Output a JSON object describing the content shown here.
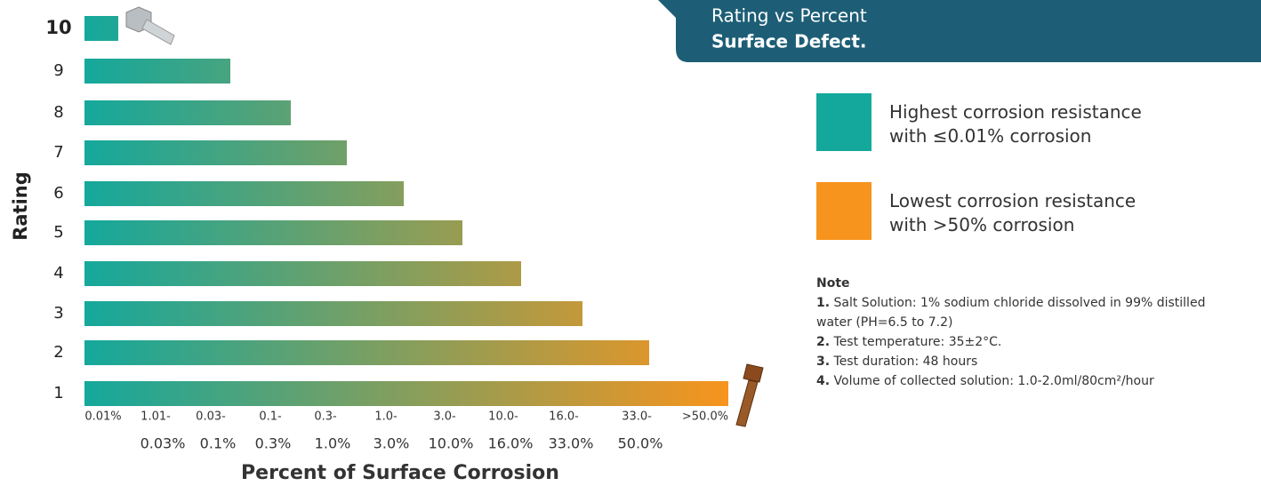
{
  "header": {
    "title": "Rating vs Percent",
    "subtitle": "Surface Defect."
  },
  "chart": {
    "y_axis_label": "Rating",
    "x_axis_label": "Percent of Surface Corrosion",
    "ratings": [
      "10",
      "9",
      "8",
      "7",
      "6",
      "5",
      "4",
      "3",
      "2",
      "1"
    ],
    "x_labels_upper": [
      "0.01%",
      "1.01-",
      "0.03-",
      "0.1-",
      "0.3-",
      "1.0-",
      "3.0-",
      "10.0-",
      "16.0-",
      "33.0-",
      ">50.0%"
    ],
    "x_labels_lower": [
      "0.03%",
      "0.1%",
      "0.3%",
      "1.0%",
      "3.0%",
      "10.0%",
      "16.0%",
      "33.0%",
      "50.0%"
    ]
  },
  "legend": [
    {
      "label": "Highest corrosion resistance with ≤0.01% corrosion",
      "color": "#14a89c"
    },
    {
      "label": "Lowest corrosion resistance with >50% corrosion",
      "color": "#f7941d"
    }
  ],
  "note": {
    "title": "Note",
    "items": [
      {
        "number": "1.",
        "text": "Salt Solution: 1% sodium chloride dissolved in 99% distilled water (PH=6.5 to 7.2)"
      },
      {
        "number": "2.",
        "text": "Test temperature: 35±2°C."
      },
      {
        "number": "3.",
        "text": "Test duration: 48 hours"
      },
      {
        "number": "4.",
        "text": "Volume of collected solution: 1.0-2.0ml/80cm²/hour"
      }
    ]
  }
}
